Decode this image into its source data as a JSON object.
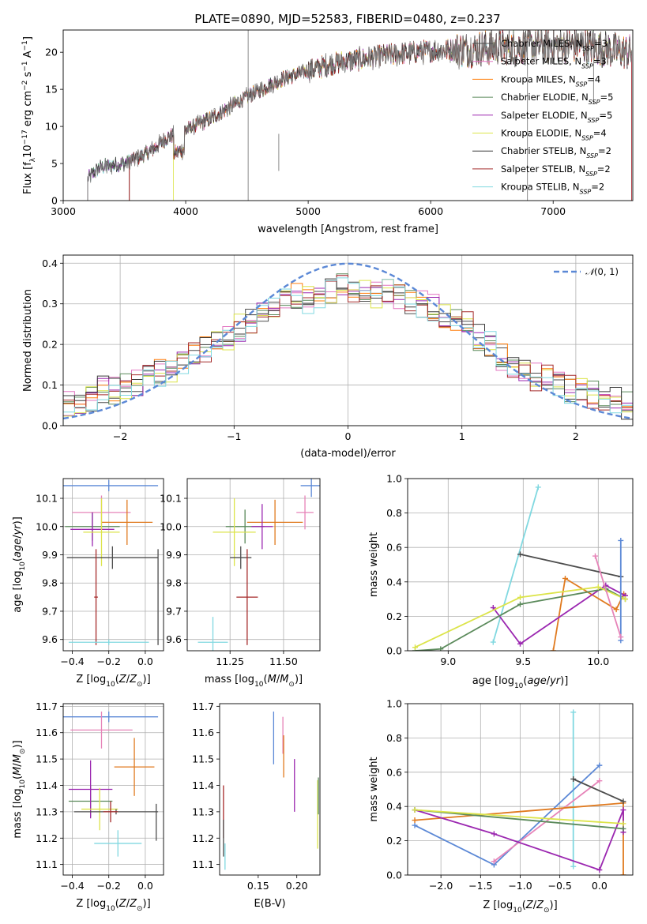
{
  "figure_title": "PLATE=0890, MJD=52583, FIBERID=0480, z=0.237",
  "colors": {
    "Chabrier MILES": "#4d4d4d",
    "Salpeter MILES": "#e377c2",
    "Kroupa MILES": "#ff7f0e",
    "Chabrier ELODIE": "#5b8a5b",
    "Salpeter ELODIE": "#9b27b0",
    "Kroupa ELODIE": "#dce44a",
    "Chabrier STELIB": "#3a3a3a",
    "Salpeter STELIB": "#a52a2a",
    "Kroupa STELIB": "#80d8e0",
    "normal": "#5b88d6",
    "blue": "#5b88d6",
    "orange": "#e07a1f",
    "pink": "#e683b8",
    "green": "#5b8a5b",
    "purple": "#9b27b0",
    "yellow": "#dce44a",
    "gray": "#4d4d4d",
    "red": "#a52a2a",
    "cyan": "#80d8e0"
  },
  "chart_data": [
    {
      "id": "spectrum",
      "type": "line",
      "title": "PLATE=0890, MJD=52583, FIBERID=0480, z=0.237",
      "xlabel": "wavelength [Angstrom, rest frame]",
      "ylabel": "Flux [f_λ 10^-17 erg cm^-2 s^-1 A^-1]",
      "xlim": [
        3000,
        7650
      ],
      "ylim": [
        0,
        23
      ],
      "xticks": [
        3000,
        4000,
        5000,
        6000,
        7000
      ],
      "yticks": [
        0,
        5,
        10,
        15,
        20
      ],
      "legend_position": "top-right",
      "legend": [
        {
          "label": "Chabrier MILES, N_SSP=3",
          "color_key": "Chabrier MILES"
        },
        {
          "label": "Salpeter MILES, N_SSP=3",
          "color_key": "Salpeter MILES"
        },
        {
          "label": "Kroupa MILES, N_SSP=4",
          "color_key": "Kroupa MILES"
        },
        {
          "label": "Chabrier ELODIE, N_SSP=5",
          "color_key": "Chabrier ELODIE"
        },
        {
          "label": "Salpeter ELODIE, N_SSP=5",
          "color_key": "Salpeter ELODIE"
        },
        {
          "label": "Kroupa ELODIE, N_SSP=4",
          "color_key": "Kroupa ELODIE"
        },
        {
          "label": "Chabrier STELIB, N_SSP=2",
          "color_key": "Chabrier STELIB"
        },
        {
          "label": "Salpeter STELIB, N_SSP=2",
          "color_key": "Salpeter STELIB"
        },
        {
          "label": "Kroupa STELIB, N_SSP=2",
          "color_key": "Kroupa STELIB"
        }
      ],
      "data_color": "#7f7f7f",
      "observed_trend": {
        "x": [
          3200,
          3300,
          3500,
          3700,
          3850,
          4000,
          4200,
          4500,
          4800,
          5200,
          5600,
          6000,
          6400,
          6800,
          7200,
          7600
        ],
        "y": [
          3,
          4.5,
          5,
          6.5,
          8.5,
          9.5,
          11,
          14,
          16.5,
          18.5,
          19.5,
          20.2,
          20.5,
          20.8,
          21,
          20
        ]
      },
      "model_starts": {
        "Chabrier MILES": 3540,
        "Salpeter MILES": 3540,
        "Kroupa MILES": 3540,
        "Chabrier ELODIE": 3200,
        "Salpeter ELODIE": 3200,
        "Kroupa ELODIE": 3900,
        "Chabrier STELIB": 3200,
        "Salpeter STELIB": 3540,
        "Kroupa STELIB": 3200
      },
      "grid": false
    },
    {
      "id": "residuals",
      "type": "histogram",
      "xlabel": "(data-model)/error",
      "ylabel": "Normed distribution",
      "xlim": [
        -2.5,
        2.5
      ],
      "ylim": [
        0,
        0.42
      ],
      "xticks": [
        -2,
        -1,
        0,
        1,
        2
      ],
      "yticks": [
        0.0,
        0.1,
        0.2,
        0.3,
        0.4
      ],
      "legend_position": "top-right",
      "reference_curve": {
        "label": "𝒩(0,1)",
        "mean": 0,
        "sigma": 1,
        "style": "dashed",
        "color_key": "normal"
      },
      "bin_edges": [
        -2.5,
        -2.4,
        -2.3,
        -2.2,
        -2.1,
        -2.0,
        -1.9,
        -1.8,
        -1.7,
        -1.6,
        -1.5,
        -1.4,
        -1.3,
        -1.2,
        -1.1,
        -1.0,
        -0.9,
        -0.8,
        -0.7,
        -0.6,
        -0.5,
        -0.4,
        -0.3,
        -0.2,
        -0.1,
        0.0,
        0.1,
        0.2,
        0.3,
        0.4,
        0.5,
        0.6,
        0.7,
        0.8,
        0.9,
        1.0,
        1.1,
        1.2,
        1.3,
        1.4,
        1.5,
        1.6,
        1.7,
        1.8,
        1.9,
        2.0,
        2.1,
        2.2,
        2.3,
        2.4,
        2.5
      ],
      "base_values": [
        0.055,
        0.065,
        0.07,
        0.09,
        0.085,
        0.1,
        0.105,
        0.12,
        0.13,
        0.13,
        0.15,
        0.17,
        0.19,
        0.2,
        0.22,
        0.24,
        0.255,
        0.27,
        0.29,
        0.31,
        0.32,
        0.31,
        0.32,
        0.33,
        0.34,
        0.33,
        0.33,
        0.32,
        0.33,
        0.32,
        0.3,
        0.3,
        0.29,
        0.27,
        0.26,
        0.25,
        0.22,
        0.2,
        0.17,
        0.15,
        0.14,
        0.12,
        0.115,
        0.1,
        0.09,
        0.085,
        0.075,
        0.065,
        0.06,
        0.05
      ],
      "series_color_keys": [
        "Chabrier MILES",
        "Salpeter MILES",
        "Kroupa MILES",
        "Chabrier ELODIE",
        "Salpeter ELODIE",
        "Kroupa ELODIE",
        "Chabrier STELIB",
        "Salpeter STELIB",
        "Kroupa STELIB"
      ],
      "grid": true
    },
    {
      "id": "age_vs_Z",
      "type": "errorbar",
      "xlabel": "Z [log10(Z/Z⊙)]",
      "ylabel": "age  [log10(age/yr)]",
      "xlim": [
        -0.45,
        0.1
      ],
      "ylim": [
        9.56,
        10.17
      ],
      "xticks": [
        -0.4,
        -0.2,
        0.0
      ],
      "xticklabels": [
        "−0.4",
        "−0.2",
        "0.0"
      ],
      "yticks": [
        9.6,
        9.7,
        9.8,
        9.9,
        10.0,
        10.1
      ],
      "points": [
        {
          "c": "blue",
          "x": -0.2,
          "y": 10.145,
          "xerr": 0.27,
          "yerr": 0.02
        },
        {
          "c": "pink",
          "x": -0.24,
          "y": 10.05,
          "xerr": 0.16,
          "yerr": 0.06
        },
        {
          "c": "orange",
          "x": -0.1,
          "y": 10.015,
          "xerr": 0.14,
          "yerr": 0.08
        },
        {
          "c": "green",
          "x": -0.29,
          "y": 10.0,
          "xerr": 0.15,
          "yerr": 0.05
        },
        {
          "c": "purple",
          "x": -0.29,
          "y": 9.99,
          "xerr": 0.12,
          "yerr": 0.06
        },
        {
          "c": "yellow",
          "x": -0.24,
          "y": 9.98,
          "xerr": 0.1,
          "yerr": 0.12
        },
        {
          "c": "gray",
          "x": -0.18,
          "y": 9.89,
          "xerr": 0.25,
          "yerr": 0.04
        },
        {
          "c": "red",
          "x": -0.27,
          "y": 9.75,
          "xerr": 0.01,
          "yerr": 0.17
        },
        {
          "c": "cyan",
          "x": -0.2,
          "y": 9.59,
          "xerr": 0.22,
          "yerr": 0.01
        },
        {
          "c": "gray",
          "x": 0.07,
          "y": 9.75,
          "xerr": 0.0,
          "yerr": 0.17
        }
      ],
      "grid": true
    },
    {
      "id": "age_vs_mass",
      "type": "errorbar",
      "xlabel": "mass [log10(M/M⊙)]",
      "ylabel": "",
      "xlim": [
        11.05,
        11.67
      ],
      "ylim": [
        9.56,
        10.17
      ],
      "xticks": [
        11.25,
        11.5
      ],
      "xticklabels": [
        "11.25",
        "11.50"
      ],
      "yticks": [
        9.6,
        9.7,
        9.8,
        9.9,
        10.0,
        10.1
      ],
      "points": [
        {
          "c": "blue",
          "x": 11.63,
          "y": 10.145,
          "xerr": 0.05,
          "yerr": 0.04
        },
        {
          "c": "pink",
          "x": 11.6,
          "y": 10.05,
          "xerr": 0.04,
          "yerr": 0.06
        },
        {
          "c": "orange",
          "x": 11.46,
          "y": 10.015,
          "xerr": 0.13,
          "yerr": 0.08
        },
        {
          "c": "green",
          "x": 11.32,
          "y": 10.0,
          "xerr": 0.09,
          "yerr": 0.06
        },
        {
          "c": "purple",
          "x": 11.4,
          "y": 10.0,
          "xerr": 0.05,
          "yerr": 0.08
        },
        {
          "c": "yellow",
          "x": 11.27,
          "y": 9.98,
          "xerr": 0.1,
          "yerr": 0.12
        },
        {
          "c": "gray",
          "x": 11.3,
          "y": 9.89,
          "xerr": 0.05,
          "yerr": 0.04
        },
        {
          "c": "red",
          "x": 11.33,
          "y": 9.75,
          "xerr": 0.05,
          "yerr": 0.17
        },
        {
          "c": "cyan",
          "x": 11.17,
          "y": 9.59,
          "xerr": 0.07,
          "yerr": 0.09
        }
      ],
      "grid": true
    },
    {
      "id": "massweight_vs_age",
      "type": "line",
      "xlabel": "age  [log10(age/yr)]",
      "ylabel": "mass weight",
      "xlim": [
        8.73,
        10.23
      ],
      "ylim": [
        0,
        1
      ],
      "xticks": [
        9.0,
        9.5,
        10.0
      ],
      "xticklabels": [
        "9.0",
        "9.5",
        "10.0"
      ],
      "yticks": [
        0.0,
        0.2,
        0.4,
        0.6,
        0.8,
        1.0
      ],
      "series": [
        {
          "c": "cyan",
          "x": [
            9.3,
            9.6
          ],
          "y": [
            0.05,
            0.95
          ]
        },
        {
          "c": "gray",
          "x": [
            9.48,
            10.15
          ],
          "y": [
            0.56,
            0.43
          ]
        },
        {
          "c": "orange",
          "x": [
            9.7,
            9.78,
            10.12,
            10.17
          ],
          "y": [
            0.0,
            0.42,
            0.24,
            0.33
          ]
        },
        {
          "c": "purple",
          "x": [
            9.3,
            9.48,
            10.05,
            10.18
          ],
          "y": [
            0.25,
            0.04,
            0.38,
            0.32
          ]
        },
        {
          "c": "green",
          "x": [
            8.78,
            8.95,
            9.48,
            10.05,
            10.18
          ],
          "y": [
            0.0,
            0.01,
            0.27,
            0.36,
            0.3
          ]
        },
        {
          "c": "yellow",
          "x": [
            8.78,
            9.48,
            10.0,
            10.18
          ],
          "y": [
            0.02,
            0.31,
            0.37,
            0.3
          ]
        },
        {
          "c": "blue",
          "x": [
            10.15,
            10.15
          ],
          "y": [
            0.06,
            0.64
          ]
        },
        {
          "c": "pink",
          "x": [
            9.98,
            10.15
          ],
          "y": [
            0.55,
            0.08
          ]
        }
      ],
      "grid": true
    },
    {
      "id": "mass_vs_Z",
      "type": "errorbar",
      "xlabel": "Z [log10(Z/Z⊙)]",
      "ylabel": "mass [log10(M/M⊙)]",
      "xlim": [
        -0.45,
        0.1
      ],
      "ylim": [
        11.06,
        11.71
      ],
      "xticks": [
        -0.4,
        -0.2,
        0.0
      ],
      "xticklabels": [
        "−0.4",
        "−0.2",
        "0.0"
      ],
      "yticks": [
        11.1,
        11.2,
        11.3,
        11.4,
        11.5,
        11.6,
        11.7
      ],
      "points": [
        {
          "c": "blue",
          "x": -0.2,
          "y": 11.66,
          "xerr": 0.27,
          "yerr": 0.02
        },
        {
          "c": "pink",
          "x": -0.24,
          "y": 11.61,
          "xerr": 0.17,
          "yerr": 0.07
        },
        {
          "c": "orange",
          "x": -0.06,
          "y": 11.47,
          "xerr": 0.11,
          "yerr": 0.11
        },
        {
          "c": "green",
          "x": -0.3,
          "y": 11.34,
          "xerr": 0.12,
          "yerr": 0.06
        },
        {
          "c": "purple",
          "x": -0.3,
          "y": 11.385,
          "xerr": 0.12,
          "yerr": 0.11
        },
        {
          "c": "yellow",
          "x": -0.25,
          "y": 11.31,
          "xerr": 0.1,
          "yerr": 0.08
        },
        {
          "c": "gray",
          "x": -0.16,
          "y": 11.3,
          "xerr": 0.23,
          "yerr": 0.01
        },
        {
          "c": "red",
          "x": -0.19,
          "y": 11.3,
          "xerr": 0.04,
          "yerr": 0.04
        },
        {
          "c": "cyan",
          "x": -0.15,
          "y": 11.18,
          "xerr": 0.13,
          "yerr": 0.05
        },
        {
          "c": "gray",
          "x": 0.06,
          "y": 11.26,
          "xerr": 0.0,
          "yerr": 0.07
        }
      ],
      "grid": true
    },
    {
      "id": "mass_vs_EBV",
      "type": "errorbar",
      "xlabel": "E(B-V)",
      "ylabel": "",
      "xlim": [
        0.1,
        0.23
      ],
      "ylim": [
        11.06,
        11.71
      ],
      "xticks": [
        0.15,
        0.2
      ],
      "xticklabels": [
        "0.15",
        "0.20"
      ],
      "yticks": [
        11.1,
        11.2,
        11.3,
        11.4,
        11.5,
        11.6,
        11.7
      ],
      "points": [
        {
          "c": "blue",
          "x": 0.17,
          "y": 11.58,
          "yerr": 0.1
        },
        {
          "c": "pink",
          "x": 0.182,
          "y": 11.59,
          "yerr": 0.07
        },
        {
          "c": "orange",
          "x": 0.183,
          "y": 11.51,
          "yerr": 0.08
        },
        {
          "c": "purple",
          "x": 0.197,
          "y": 11.4,
          "yerr": 0.1
        },
        {
          "c": "red",
          "x": 0.105,
          "y": 11.3,
          "yerr": 0.1
        },
        {
          "c": "yellow",
          "x": 0.227,
          "y": 11.29,
          "yerr": 0.13
        },
        {
          "c": "gray",
          "x": 0.105,
          "y": 11.2,
          "yerr": 0.07
        },
        {
          "c": "cyan",
          "x": 0.107,
          "y": 11.13,
          "yerr": 0.05
        },
        {
          "c": "green",
          "x": 0.228,
          "y": 11.36,
          "yerr": 0.07
        }
      ],
      "grid": false
    },
    {
      "id": "massweight_vs_Z",
      "type": "line",
      "xlabel": "Z [log10(Z/Z⊙)]",
      "ylabel": "mass weight",
      "xlim": [
        -2.42,
        0.42
      ],
      "ylim": [
        0,
        1
      ],
      "xticks": [
        -2.0,
        -1.5,
        -1.0,
        -0.5,
        0.0
      ],
      "xticklabels": [
        "−2.0",
        "−1.5",
        "−1.0",
        "−0.5",
        "0.0"
      ],
      "yticks": [
        0.0,
        0.2,
        0.4,
        0.6,
        0.8,
        1.0
      ],
      "series": [
        {
          "c": "cyan",
          "x": [
            -0.33,
            -0.33
          ],
          "y": [
            0.05,
            0.95
          ]
        },
        {
          "c": "blue",
          "x": [
            -2.33,
            -1.33,
            0.0
          ],
          "y": [
            0.29,
            0.06,
            0.64
          ]
        },
        {
          "c": "pink",
          "x": [
            -1.33,
            0.0
          ],
          "y": [
            0.08,
            0.55
          ]
        },
        {
          "c": "orange",
          "x": [
            -2.33,
            0.3,
            0.3
          ],
          "y": [
            0.32,
            0.42,
            0.0
          ]
        },
        {
          "c": "gray",
          "x": [
            -0.33,
            0.3
          ],
          "y": [
            0.56,
            0.43
          ]
        },
        {
          "c": "purple",
          "x": [
            -2.33,
            -1.33,
            0.0,
            0.3,
            0.3
          ],
          "y": [
            0.38,
            0.24,
            0.03,
            0.38,
            0.25
          ]
        },
        {
          "c": "green",
          "x": [
            -2.33,
            0.3
          ],
          "y": [
            0.38,
            0.27
          ]
        },
        {
          "c": "yellow",
          "x": [
            -2.33,
            0.3
          ],
          "y": [
            0.38,
            0.3
          ]
        }
      ],
      "grid": true
    }
  ]
}
